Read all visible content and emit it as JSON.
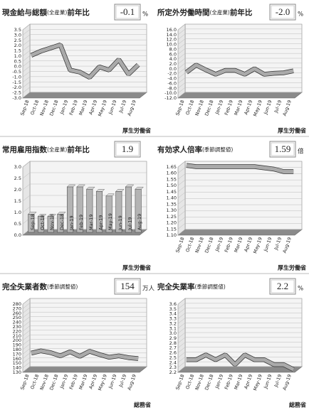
{
  "chart_data": [
    {
      "type": "line",
      "title": "現金給与総額",
      "title_note": "(全産業)",
      "title_suffix": "前年比",
      "latest": "-0.1",
      "unit": "%",
      "source": "厚生労働省",
      "color": "#aaaaaa",
      "categories": [
        "Sep-18",
        "Oct-18",
        "Nov-18",
        "Dec-18",
        "Jan-19",
        "Feb-19",
        "Mar-19",
        "Apr-19",
        "May-19",
        "Jun-19",
        "Jul-19",
        "Aug-19"
      ],
      "values": [
        0.8,
        1.2,
        1.5,
        1.8,
        -0.6,
        -0.8,
        -1.3,
        -0.3,
        -0.6,
        0.4,
        -1.0,
        -0.1
      ],
      "ylim": [
        -3,
        3.5
      ],
      "yticks": [
        3.5,
        {
          "value": 3,
          "label": "3.0"
        },
        2.5,
        {
          "value": 2,
          "label": "2.0"
        },
        1.5,
        {
          "value": 1,
          "label": "1.0"
        },
        0.5,
        {
          "value": 0,
          "label": "0.0"
        },
        -0.5,
        {
          "value": -1,
          "label": "-1.0"
        },
        -1.5,
        {
          "value": -2,
          "label": "-2.0"
        },
        -2.5,
        {
          "value": -3,
          "label": "-3.0"
        }
      ]
    },
    {
      "type": "line",
      "title": "所定外労働時間",
      "title_note": "(全産業)",
      "title_suffix": "前年比",
      "latest": "-2.0",
      "unit": "%",
      "source": "厚生労働省",
      "color": "#aaaaaa",
      "categories": [
        "Sep-18",
        "Oct-18",
        "Nov-18",
        "Dec-18",
        "Jan-19",
        "Feb-19",
        "Mar-19",
        "Apr-19",
        "May-19",
        "Jun-19",
        "Jul-19",
        "Aug-19"
      ],
      "values": [
        -2.6,
        0.4,
        -1.6,
        -3.4,
        -1.8,
        -1.8,
        -3.4,
        -1.1,
        -3.4,
        -3.0,
        -2.8,
        -2.0
      ],
      "ylim": [
        -12,
        16
      ],
      "yticks": [
        {
          "value": 16,
          "label": "16.0"
        },
        {
          "value": 14,
          "label": "14.0"
        },
        {
          "value": 12,
          "label": "12.0"
        },
        {
          "value": 10,
          "label": "10.0"
        },
        {
          "value": 8,
          "label": "8.0"
        },
        {
          "value": 6,
          "label": "6.0"
        },
        {
          "value": 4,
          "label": "4.0"
        },
        {
          "value": 2,
          "label": "2.0"
        },
        {
          "value": 0,
          "label": "0.0"
        },
        {
          "value": -2,
          "label": "-2.0"
        },
        {
          "value": -4,
          "label": "-4.0"
        },
        {
          "value": -6,
          "label": "-6.0"
        },
        {
          "value": -8,
          "label": "-8.0"
        },
        {
          "value": -10,
          "label": "-10.0"
        },
        {
          "value": -12,
          "label": "-12.0"
        }
      ]
    },
    {
      "type": "bar",
      "title": "常用雇用指数",
      "title_note": "(全産業)",
      "title_suffix": "前年比",
      "latest": "1.9",
      "source": "厚生労働省",
      "color": "#b4b4b4",
      "categories": [
        "Sep-18",
        "Oct-18",
        "Nov-18",
        "Dec-18",
        "Jan-19",
        "Feb-19",
        "Mar-19",
        "Apr-19",
        "May-19",
        "Jun-19",
        "Jul-19",
        "Aug-19"
      ],
      "values": [
        0.8,
        0.7,
        0.7,
        0.8,
        2.0,
        2.0,
        1.9,
        1.8,
        1.6,
        1.8,
        2.0,
        1.9
      ],
      "ylim": [
        0,
        3
      ],
      "yticks": [
        {
          "value": 3,
          "label": "3.0"
        },
        2.5,
        {
          "value": 2,
          "label": "2.0"
        },
        1.5,
        {
          "value": 1,
          "label": "1.0"
        },
        0.5,
        {
          "value": 0,
          "label": "0.0"
        }
      ]
    },
    {
      "type": "line",
      "title": "有効求人倍率",
      "title_note": "(季節調整値)",
      "latest": "1.59",
      "unit": "倍",
      "source": "厚生労働省",
      "color": "#aaaaaa",
      "categories": [
        "Sep-18",
        "Oct-18",
        "Nov-18",
        "Dec-18",
        "Jan-19",
        "Feb-19",
        "Mar-19",
        "Apr-19",
        "May-19",
        "Jun-19",
        "Jul-19",
        "Aug-19"
      ],
      "values": [
        1.64,
        1.63,
        1.63,
        1.63,
        1.63,
        1.63,
        1.63,
        1.63,
        1.62,
        1.61,
        1.59,
        1.59
      ],
      "ylim": [
        1.1,
        1.65
      ],
      "yticks": [
        1.65,
        {
          "value": 1.6,
          "label": "1.60"
        },
        1.55,
        {
          "value": 1.5,
          "label": "1.50"
        },
        1.45,
        {
          "value": 1.4,
          "label": "1.40"
        },
        1.35,
        {
          "value": 1.3,
          "label": "1.30"
        },
        1.25,
        {
          "value": 1.2,
          "label": "1.20"
        },
        1.15,
        {
          "value": 1.1,
          "label": "1.10"
        }
      ]
    },
    {
      "type": "line",
      "title": "完全失業者数",
      "title_note": "(季節調整値)",
      "latest": "154",
      "unit": "万人",
      "source": "総務省",
      "color": "#aaaaaa",
      "categories": [
        "Sep-18",
        "Oct-18",
        "Nov-18",
        "Dec-18",
        "Jan-19",
        "Feb-19",
        "Mar-19",
        "Apr-19",
        "May-19",
        "Jun-19",
        "Jul-19",
        "Aug-19"
      ],
      "values": [
        166,
        171,
        167,
        160,
        169,
        159,
        170,
        163,
        157,
        160,
        156,
        154
      ],
      "ylim": [
        130,
        280
      ],
      "yticks": [
        280,
        270,
        260,
        250,
        240,
        230,
        220,
        210,
        200,
        190,
        180,
        170,
        160,
        150,
        140,
        130
      ]
    },
    {
      "type": "line",
      "title": "完全失業率",
      "title_note": "(季節調整値)",
      "latest": "2.2",
      "unit": "%",
      "source": "総務省",
      "color": "#aaaaaa",
      "categories": [
        "Sep-18",
        "Oct-18",
        "Nov-18",
        "Dec-18",
        "Jan-19",
        "Feb-19",
        "Mar-19",
        "Apr-19",
        "May-19",
        "Jun-19",
        "Jul-19",
        "Aug-19"
      ],
      "values": [
        2.4,
        2.4,
        2.5,
        2.4,
        2.5,
        2.3,
        2.5,
        2.4,
        2.4,
        2.3,
        2.3,
        2.2
      ],
      "ylim": [
        2.2,
        3.6
      ],
      "yticks": [
        3.6,
        3.5,
        3.4,
        3.3,
        3.2,
        3.1,
        {
          "value": 3,
          "label": "3.0"
        },
        2.9,
        2.8,
        2.7,
        2.6,
        2.5,
        2.4,
        2.3,
        2.2
      ]
    }
  ]
}
